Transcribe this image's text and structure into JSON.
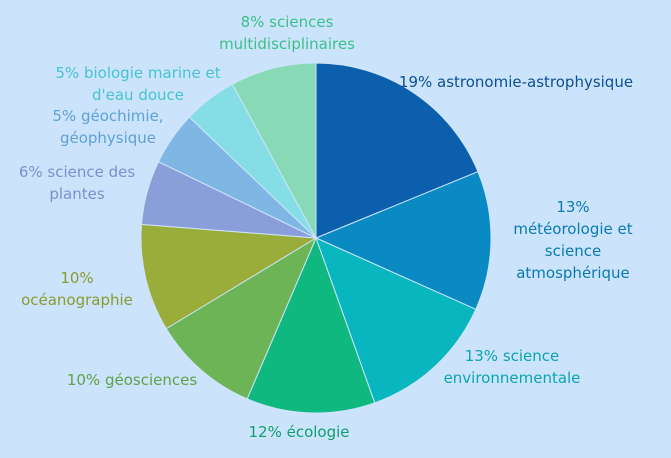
{
  "chart_data": {
    "type": "pie",
    "title": "",
    "slices": [
      {
        "value": 19,
        "label": "19% astronomie-astrophysique",
        "color": "#0b5fad"
      },
      {
        "value": 13,
        "label": "13% météorologie et science atmosphérique",
        "color": "#0a8ac2"
      },
      {
        "value": 13,
        "label": "13% science environnementale",
        "color": "#08b6c0"
      },
      {
        "value": 12,
        "label": "12% écologie",
        "color": "#0fb87f"
      },
      {
        "value": 10,
        "label": "10% géosciences",
        "color": "#6cb455"
      },
      {
        "value": 10,
        "label": "10% océanographie",
        "color": "#9aad3b"
      },
      {
        "value": 6,
        "label": "6% science des plantes",
        "color": "#8a9fda"
      },
      {
        "value": 5,
        "label": "5% géochimie, géophysique",
        "color": "#7eb7e3"
      },
      {
        "value": 5,
        "label": "5% biologie marine et d'eau douce",
        "color": "#85dde6"
      },
      {
        "value": 8,
        "label": "8% sciences multidisciplinaires",
        "color": "#88d9b6"
      }
    ]
  }
}
